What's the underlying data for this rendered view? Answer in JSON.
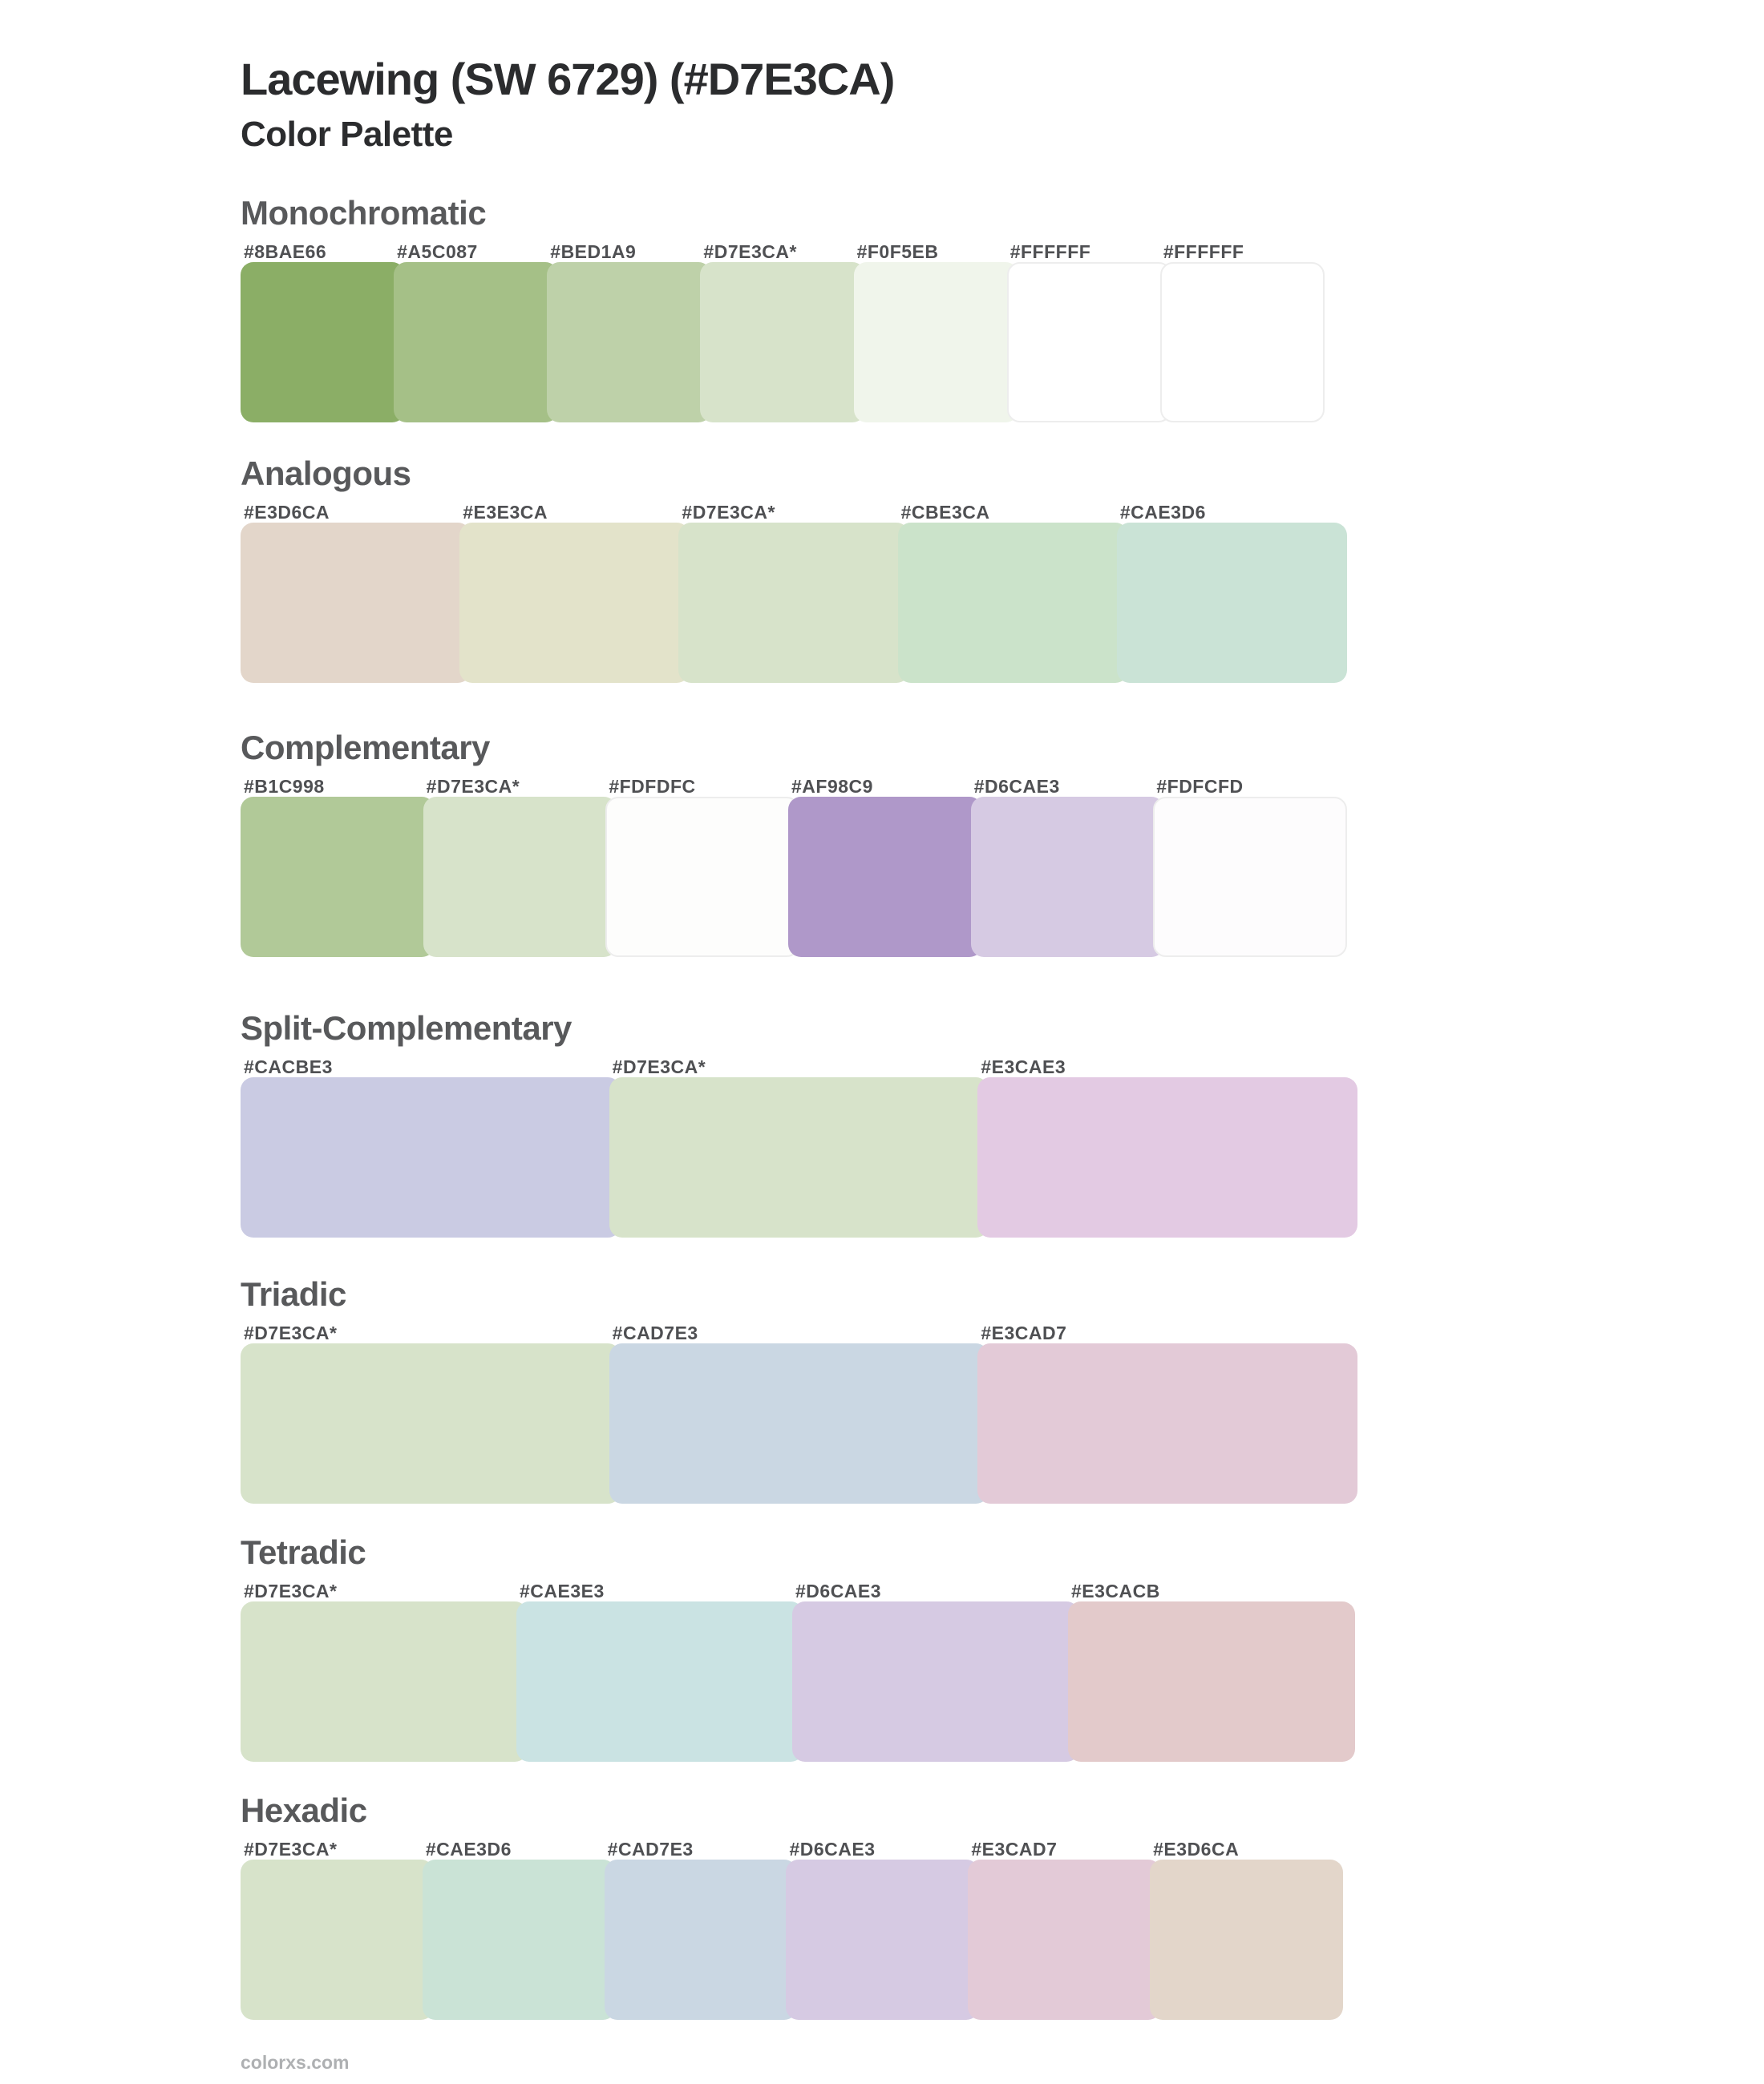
{
  "page": {
    "title": "Lacewing (SW 6729) (#D7E3CA)",
    "subtitle": "Color Palette",
    "footer": "colorxs.com",
    "base_color": "#D7E3CA"
  },
  "sections": [
    {
      "name": "Monochromatic",
      "colors": [
        {
          "label": "#8BAE66"
        },
        {
          "label": "#A5C087"
        },
        {
          "label": "#BED1A9"
        },
        {
          "label": "#D7E3CA*"
        },
        {
          "label": "#F0F5EB"
        },
        {
          "label": "#FFFFFF"
        },
        {
          "label": "#FFFFFF"
        }
      ]
    },
    {
      "name": "Analogous",
      "colors": [
        {
          "label": "#E3D6CA"
        },
        {
          "label": "#E3E3CA"
        },
        {
          "label": "#D7E3CA*"
        },
        {
          "label": "#CBE3CA"
        },
        {
          "label": "#CAE3D6"
        }
      ]
    },
    {
      "name": "Complementary",
      "colors": [
        {
          "label": "#B1C998"
        },
        {
          "label": "#D7E3CA*"
        },
        {
          "label": "#FDFDFC"
        },
        {
          "label": "#AF98C9"
        },
        {
          "label": "#D6CAE3"
        },
        {
          "label": "#FDFCFD"
        }
      ]
    },
    {
      "name": "Split-Complementary",
      "colors": [
        {
          "label": "#CACBE3"
        },
        {
          "label": "#D7E3CA*"
        },
        {
          "label": "#E3CAE3"
        }
      ]
    },
    {
      "name": "Triadic",
      "colors": [
        {
          "label": "#D7E3CA*"
        },
        {
          "label": "#CAD7E3"
        },
        {
          "label": "#E3CAD7"
        }
      ]
    },
    {
      "name": "Tetradic",
      "colors": [
        {
          "label": "#D7E3CA*"
        },
        {
          "label": "#CAE3E3"
        },
        {
          "label": "#D6CAE3"
        },
        {
          "label": "#E3CACB"
        }
      ]
    },
    {
      "name": "Hexadic",
      "colors": [
        {
          "label": "#D7E3CA*"
        },
        {
          "label": "#CAE3D6"
        },
        {
          "label": "#CAD7E3"
        },
        {
          "label": "#D6CAE3"
        },
        {
          "label": "#E3CAD7"
        },
        {
          "label": "#E3D6CA"
        }
      ]
    }
  ]
}
